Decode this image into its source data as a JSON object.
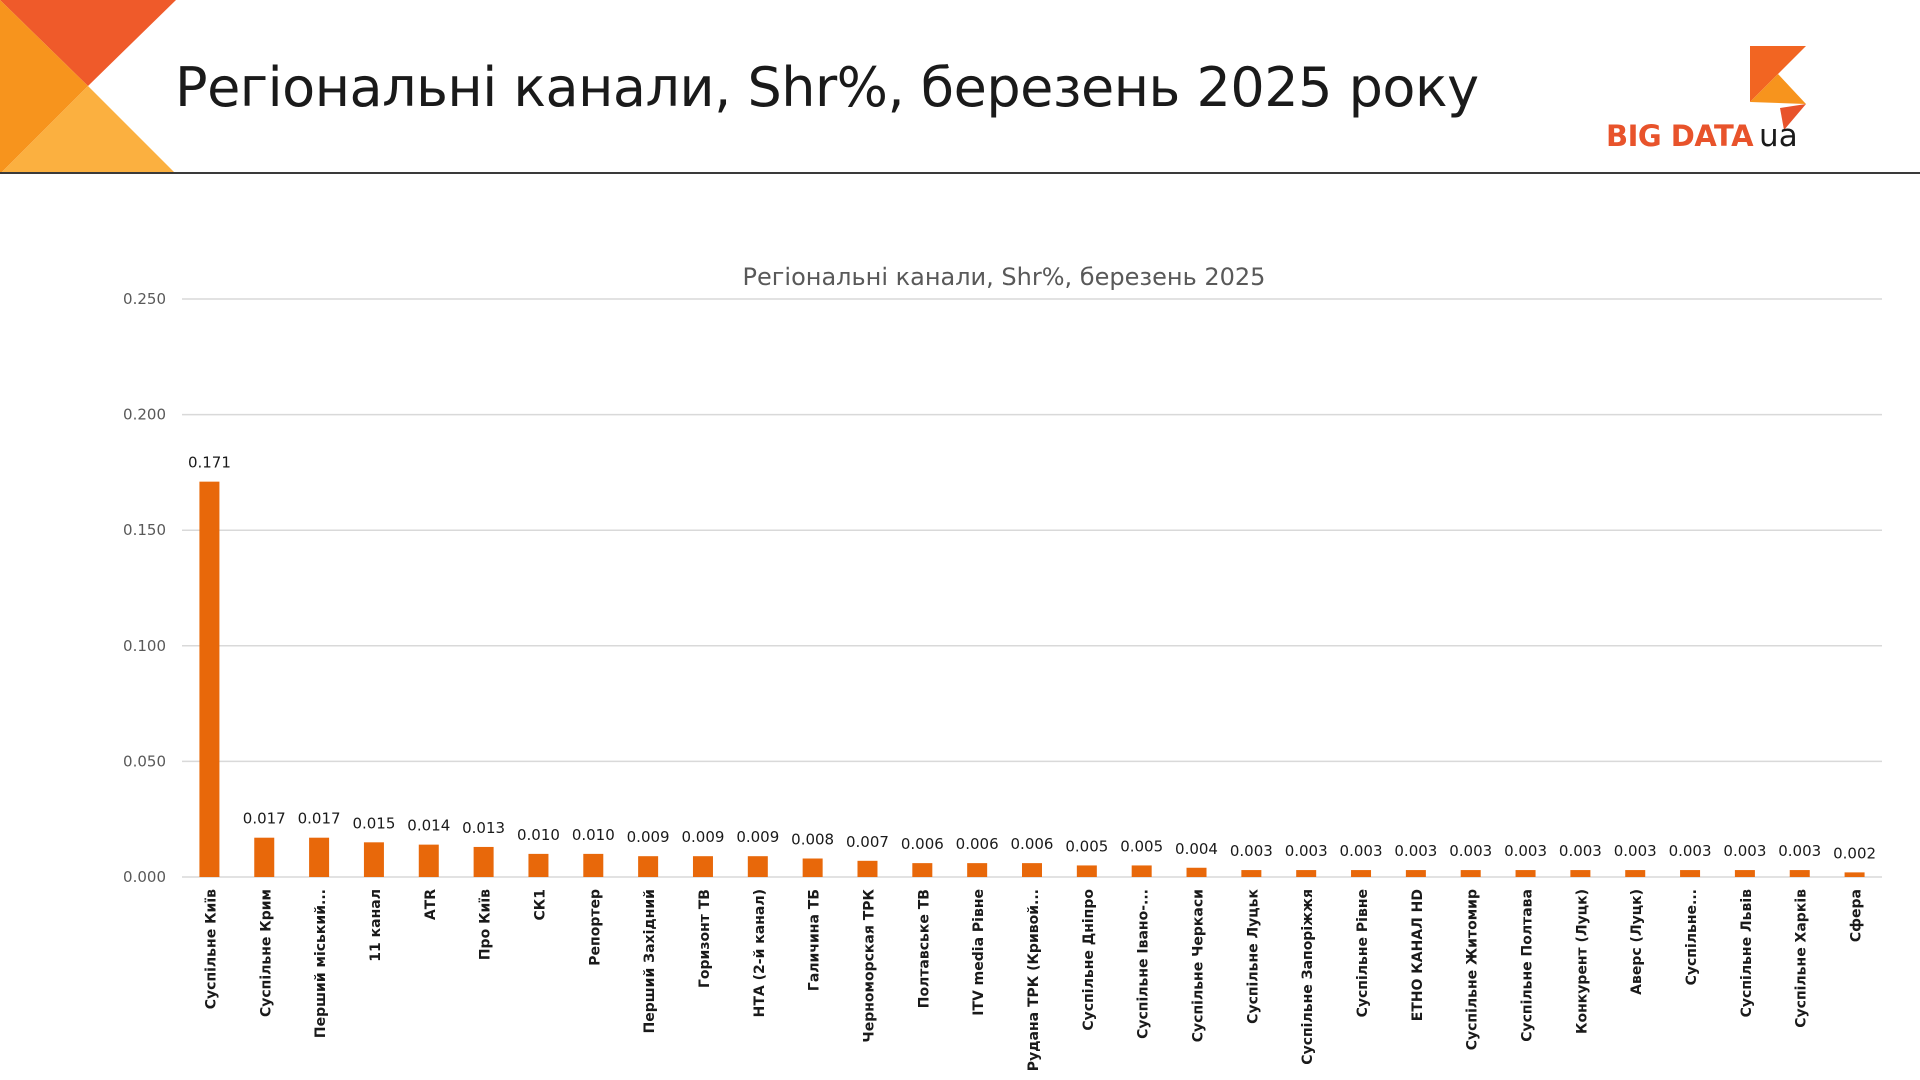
{
  "slide": {
    "title": "Регіональні канали, Shr%, березень 2025 року"
  },
  "logo": {
    "brand": "BIG DATA",
    "suffix": "ua"
  },
  "colors": {
    "bar": "#e8680a",
    "brand_red": "#e8532b",
    "corner_orange": "#f7941d",
    "corner_light": "#fbb040",
    "grid": "#d9d9d9"
  },
  "chart_data": {
    "type": "bar",
    "title": "Регіональні канали, Shr%, березень 2025",
    "xlabel": "",
    "ylabel": "",
    "ylim": [
      0,
      0.25
    ],
    "yticks": [
      "0.000",
      "0.050",
      "0.100",
      "0.150",
      "0.200",
      "0.250"
    ],
    "grid": true,
    "legend": "none",
    "categories": [
      "Суспільне Київ",
      "Суспільне Крим",
      "Перший міський...",
      "11 канал",
      "АТR",
      "Про Київ",
      "СК1",
      "Репортер",
      "Перший Західний",
      "Горизонт ТВ",
      "НТА (2-й канал)",
      "Галичина ТБ",
      "Черноморская ТРК",
      "Полтавське ТВ",
      "ITV media Рівне",
      "Рудана ТРК (Кривой...",
      "Суспільне Дніпро",
      "Суспільне Івано-...",
      "Суспільне Черкаси",
      "Суспільне Луцьк",
      "Суспільне Запоріжжя",
      "Суспільне Рівне",
      "ЕТНО КАНАЛ HD",
      "Суспільне Житомир",
      "Суспільне Полтава",
      "Конкурент (Луцк)",
      "Аверс (Луцк)",
      "Суспільне...",
      "Суспільне Львів",
      "Суспільне Харків",
      "Сфера"
    ],
    "values": [
      0.171,
      0.017,
      0.017,
      0.015,
      0.014,
      0.013,
      0.01,
      0.01,
      0.009,
      0.009,
      0.009,
      0.008,
      0.007,
      0.006,
      0.006,
      0.006,
      0.005,
      0.005,
      0.004,
      0.003,
      0.003,
      0.003,
      0.003,
      0.003,
      0.003,
      0.003,
      0.003,
      0.003,
      0.003,
      0.003,
      0.002
    ],
    "data_labels": [
      "0.171",
      "0.017",
      "0.017",
      "0.015",
      "0.014",
      "0.013",
      "0.010",
      "0.010",
      "0.009",
      "0.009",
      "0.009",
      "0.008",
      "0.007",
      "0.006",
      "0.006",
      "0.006",
      "0.005",
      "0.005",
      "0.004",
      "0.003",
      "0.003",
      "0.003",
      "0.003",
      "0.003",
      "0.003",
      "0.003",
      "0.003",
      "0.003",
      "0.003",
      "0.003",
      "0.002"
    ]
  }
}
